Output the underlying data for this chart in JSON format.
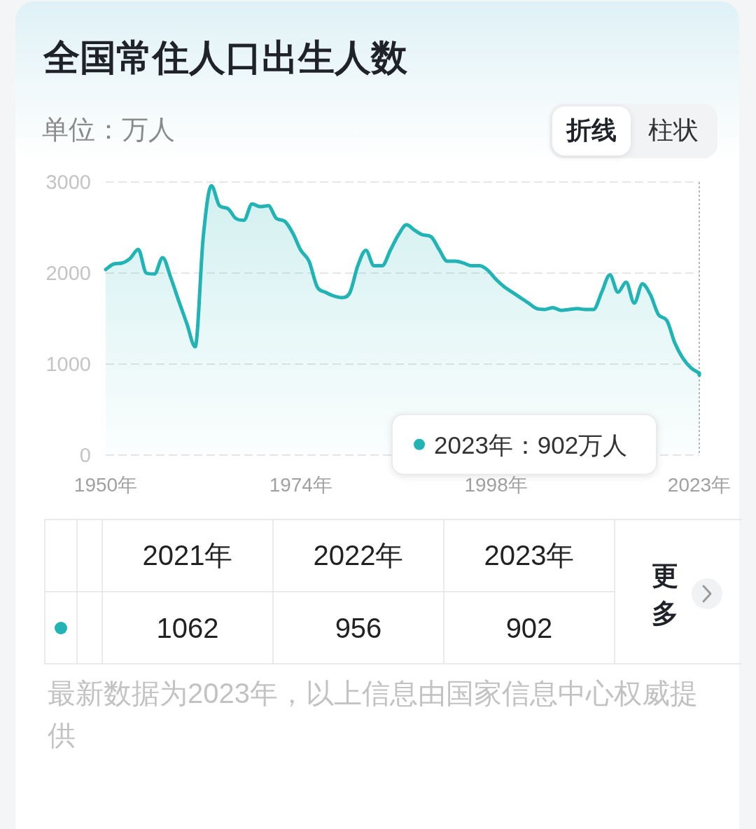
{
  "chart_data": {
    "type": "area",
    "title": "全国常住人口出生人数",
    "ylabel": "单位：万人",
    "color": "#22b3b5",
    "x": [
      1950,
      1951,
      1952,
      1953,
      1954,
      1955,
      1956,
      1957,
      1958,
      1959,
      1960,
      1961,
      1962,
      1963,
      1964,
      1965,
      1966,
      1967,
      1968,
      1969,
      1970,
      1971,
      1972,
      1973,
      1974,
      1975,
      1976,
      1977,
      1978,
      1979,
      1980,
      1981,
      1982,
      1983,
      1984,
      1985,
      1986,
      1987,
      1988,
      1989,
      1990,
      1991,
      1992,
      1993,
      1994,
      1995,
      1996,
      1997,
      1998,
      1999,
      2000,
      2001,
      2002,
      2003,
      2004,
      2005,
      2006,
      2007,
      2008,
      2009,
      2010,
      2011,
      2012,
      2013,
      2014,
      2015,
      2016,
      2017,
      2018,
      2019,
      2020,
      2021,
      2022,
      2023
    ],
    "values": [
      2040,
      2100,
      2110,
      2160,
      2260,
      2000,
      1990,
      2170,
      1950,
      1690,
      1440,
      1190,
      2400,
      2960,
      2740,
      2710,
      2600,
      2580,
      2760,
      2730,
      2740,
      2600,
      2570,
      2440,
      2250,
      2130,
      1850,
      1790,
      1750,
      1730,
      1780,
      2080,
      2250,
      2080,
      2080,
      2250,
      2420,
      2530,
      2470,
      2420,
      2400,
      2260,
      2130,
      2130,
      2110,
      2080,
      2080,
      2030,
      1930,
      1850,
      1790,
      1730,
      1670,
      1610,
      1600,
      1620,
      1590,
      1600,
      1610,
      1600,
      1600,
      1790,
      1980,
      1790,
      1900,
      1670,
      1880,
      1760,
      1540,
      1480,
      1230,
      1062,
      956,
      902
    ],
    "xlim": [
      1950,
      2023
    ],
    "xticks": [
      {
        "value": 1950,
        "label": "1950年"
      },
      {
        "value": 1974,
        "label": "1974年"
      },
      {
        "value": 1998,
        "label": "1998年"
      },
      {
        "value": 2023,
        "label": "2023年"
      }
    ],
    "ylim": [
      0,
      3000
    ],
    "yticks": [
      0,
      1000,
      2000,
      3000
    ],
    "grid": "y",
    "ref_lines": [
      {
        "axis": "x",
        "value": 2023,
        "color": "#b8b8b8",
        "line_style": "dotted"
      }
    ],
    "annotations": [
      "2023年：902万人",
      "2021年",
      "2022年",
      "2023年",
      "1062",
      "956",
      "902",
      "更多",
      "折线",
      "柱状",
      "最新数据为2023年，以上信息由国家信息中心权威提供"
    ]
  }
}
